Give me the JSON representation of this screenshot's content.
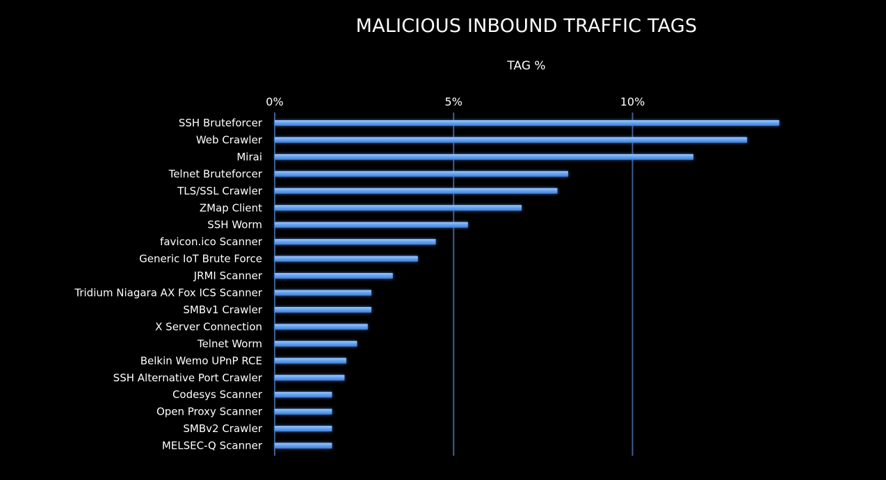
{
  "colors": {
    "background": "#000000",
    "bar": "#6aa6f0",
    "bar_glow": "#3d7fd6",
    "gridline": "#3f5f96",
    "text": "#ffffff"
  },
  "chart_data": {
    "type": "bar",
    "orientation": "horizontal",
    "title": "MALICIOUS INBOUND TRAFFIC TAGS",
    "subtitle": "TAG %",
    "xlabel": "",
    "ylabel": "",
    "xlim": [
      0,
      14.2
    ],
    "x_ticks": [
      0,
      5,
      10
    ],
    "x_tick_labels": [
      "0%",
      "5%",
      "10%"
    ],
    "x_axis_position": "top",
    "grid": true,
    "legend": "none",
    "categories": [
      "SSH Bruteforcer",
      "Web Crawler",
      "Mirai",
      "Telnet Bruteforcer",
      "TLS/SSL Crawler",
      "ZMap Client",
      "SSH Worm",
      "favicon.ico Scanner",
      "Generic IoT Brute Force",
      "JRMI Scanner",
      "Tridium Niagara AX Fox ICS Scanner",
      "SMBv1 Crawler",
      "X Server Connection",
      "Telnet Worm",
      "Belkin Wemo UPnP RCE",
      "SSH Alternative Port Crawler",
      "Codesys Scanner",
      "Open Proxy Scanner",
      "SMBv2 Crawler",
      "MELSEC-Q Scanner"
    ],
    "values": [
      14.1,
      13.2,
      11.7,
      8.2,
      7.9,
      6.9,
      5.4,
      4.5,
      4.0,
      3.3,
      2.7,
      2.7,
      2.6,
      2.3,
      2.0,
      1.95,
      1.6,
      1.6,
      1.6,
      1.6
    ]
  }
}
